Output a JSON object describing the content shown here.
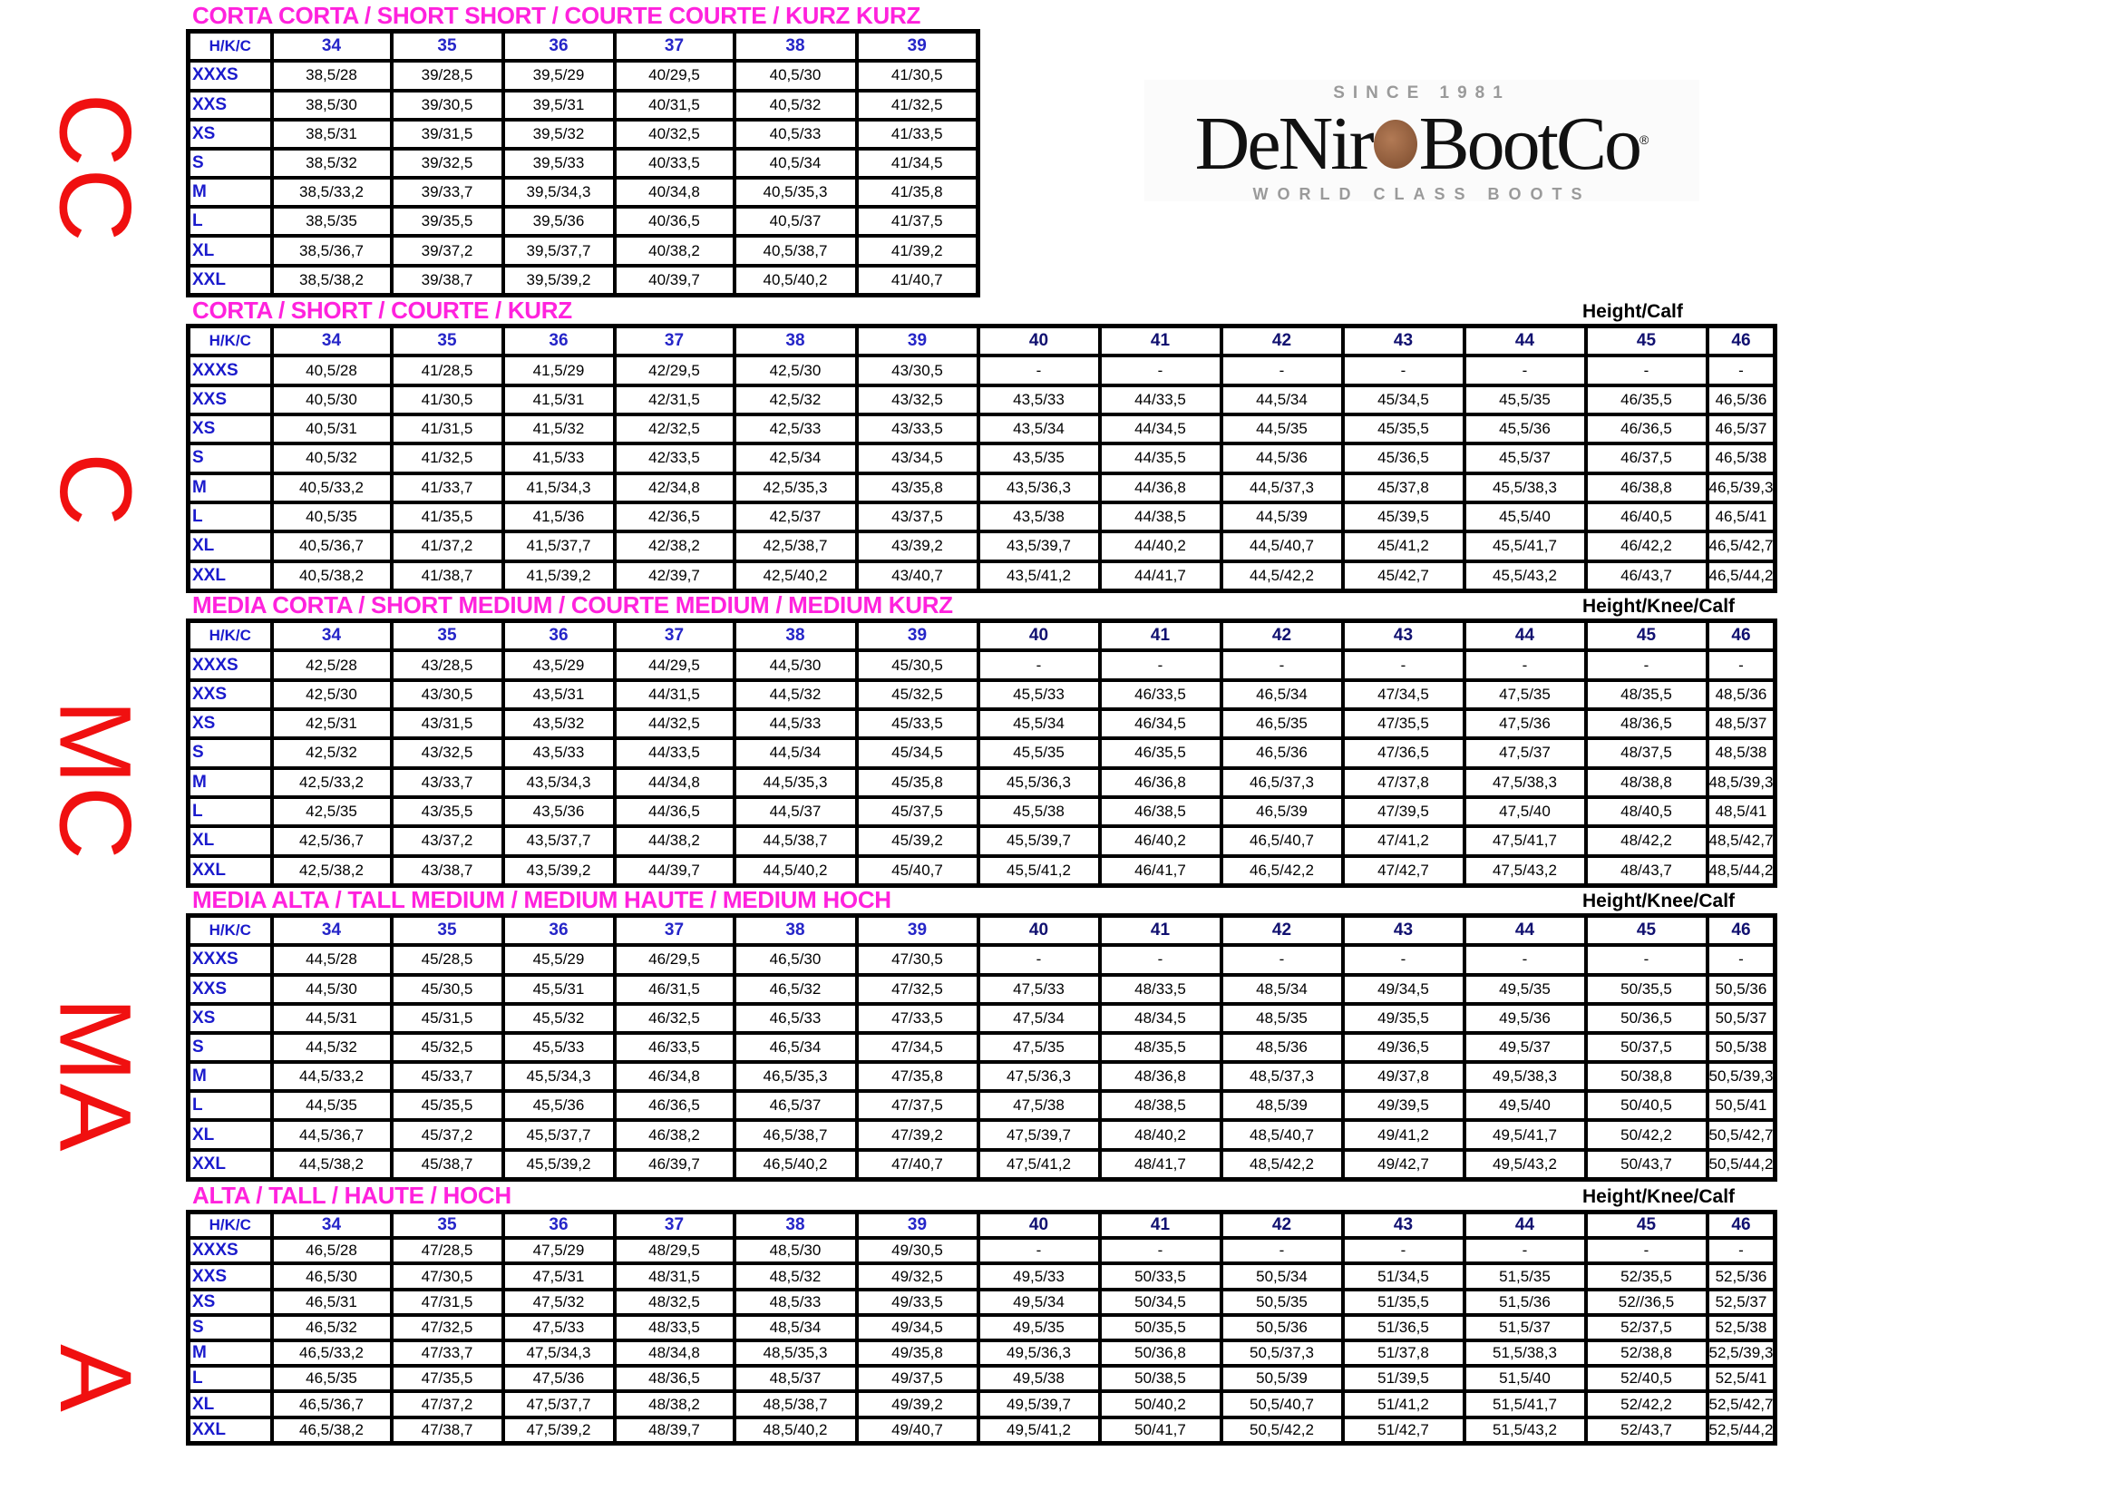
{
  "logo": {
    "since": "SINCE 1981",
    "name_left": "DeNir",
    "name_right": "BootCo",
    "registered": "®",
    "tagline": "WORLD CLASS BOOTS"
  },
  "colors": {
    "title": "#ff22dd",
    "side_label": "#f01010",
    "row_label": "#1a1acc"
  },
  "corner_label": "H/K/C",
  "sizes": [
    "XXXS",
    "XXS",
    "XS",
    "S",
    "M",
    "L",
    "XL",
    "XXL"
  ],
  "tables": [
    {
      "side": "CC",
      "title": "CORTA CORTA / SHORT SHORT / COURTE COURTE / KURZ KURZ",
      "note": "",
      "columns": [
        "34",
        "35",
        "36",
        "37",
        "38",
        "39"
      ],
      "rows": [
        [
          "38,5/28",
          "39/28,5",
          "39,5/29",
          "40/29,5",
          "40,5/30",
          "41/30,5"
        ],
        [
          "38,5/30",
          "39/30,5",
          "39,5/31",
          "40/31,5",
          "40,5/32",
          "41/32,5"
        ],
        [
          "38,5/31",
          "39/31,5",
          "39,5/32",
          "40/32,5",
          "40,5/33",
          "41/33,5"
        ],
        [
          "38,5/32",
          "39/32,5",
          "39,5/33",
          "40/33,5",
          "40,5/34",
          "41/34,5"
        ],
        [
          "38,5/33,2",
          "39/33,7",
          "39,5/34,3",
          "40/34,8",
          "40,5/35,3",
          "41/35,8"
        ],
        [
          "38,5/35",
          "39/35,5",
          "39,5/36",
          "40/36,5",
          "40,5/37",
          "41/37,5"
        ],
        [
          "38,5/36,7",
          "39/37,2",
          "39,5/37,7",
          "40/38,2",
          "40,5/38,7",
          "41/39,2"
        ],
        [
          "38,5/38,2",
          "39/38,7",
          "39,5/39,2",
          "40/39,7",
          "40,5/40,2",
          "41/40,7"
        ]
      ]
    },
    {
      "side": "C",
      "title": "CORTA / SHORT / COURTE / KURZ",
      "note": "Height/Calf",
      "columns": [
        "34",
        "35",
        "36",
        "37",
        "38",
        "39",
        "40",
        "41",
        "42",
        "43",
        "44",
        "45",
        "46"
      ],
      "rows": [
        [
          "40,5/28",
          "41/28,5",
          "41,5/29",
          "42/29,5",
          "42,5/30",
          "43/30,5",
          "-",
          "-",
          "-",
          "-",
          "-",
          "-",
          "-"
        ],
        [
          "40,5/30",
          "41/30,5",
          "41,5/31",
          "42/31,5",
          "42,5/32",
          "43/32,5",
          "43,5/33",
          "44/33,5",
          "44,5/34",
          "45/34,5",
          "45,5/35",
          "46/35,5",
          "46,5/36"
        ],
        [
          "40,5/31",
          "41/31,5",
          "41,5/32",
          "42/32,5",
          "42,5/33",
          "43/33,5",
          "43,5/34",
          "44/34,5",
          "44,5/35",
          "45/35,5",
          "45,5/36",
          "46/36,5",
          "46,5/37"
        ],
        [
          "40,5/32",
          "41/32,5",
          "41,5/33",
          "42/33,5",
          "42,5/34",
          "43/34,5",
          "43,5/35",
          "44/35,5",
          "44,5/36",
          "45/36,5",
          "45,5/37",
          "46/37,5",
          "46,5/38"
        ],
        [
          "40,5/33,2",
          "41/33,7",
          "41,5/34,3",
          "42/34,8",
          "42,5/35,3",
          "43/35,8",
          "43,5/36,3",
          "44/36,8",
          "44,5/37,3",
          "45/37,8",
          "45,5/38,3",
          "46/38,8",
          "46,5/39,3"
        ],
        [
          "40,5/35",
          "41/35,5",
          "41,5/36",
          "42/36,5",
          "42,5/37",
          "43/37,5",
          "43,5/38",
          "44/38,5",
          "44,5/39",
          "45/39,5",
          "45,5/40",
          "46/40,5",
          "46,5/41"
        ],
        [
          "40,5/36,7",
          "41/37,2",
          "41,5/37,7",
          "42/38,2",
          "42,5/38,7",
          "43/39,2",
          "43,5/39,7",
          "44/40,2",
          "44,5/40,7",
          "45/41,2",
          "45,5/41,7",
          "46/42,2",
          "46,5/42,7"
        ],
        [
          "40,5/38,2",
          "41/38,7",
          "41,5/39,2",
          "42/39,7",
          "42,5/40,2",
          "43/40,7",
          "43,5/41,2",
          "44/41,7",
          "44,5/42,2",
          "45/42,7",
          "45,5/43,2",
          "46/43,7",
          "46,5/44,2"
        ]
      ]
    },
    {
      "side": "MC",
      "title": "MEDIA CORTA / SHORT MEDIUM / COURTE MEDIUM / MEDIUM KURZ",
      "note": "Height/Knee/Calf",
      "columns": [
        "34",
        "35",
        "36",
        "37",
        "38",
        "39",
        "40",
        "41",
        "42",
        "43",
        "44",
        "45",
        "46"
      ],
      "rows": [
        [
          "42,5/28",
          "43/28,5",
          "43,5/29",
          "44/29,5",
          "44,5/30",
          "45/30,5",
          "-",
          "-",
          "-",
          "-",
          "-",
          "-",
          "-"
        ],
        [
          "42,5/30",
          "43/30,5",
          "43,5/31",
          "44/31,5",
          "44,5/32",
          "45/32,5",
          "45,5/33",
          "46/33,5",
          "46,5/34",
          "47/34,5",
          "47,5/35",
          "48/35,5",
          "48,5/36"
        ],
        [
          "42,5/31",
          "43/31,5",
          "43,5/32",
          "44/32,5",
          "44,5/33",
          "45/33,5",
          "45,5/34",
          "46/34,5",
          "46,5/35",
          "47/35,5",
          "47,5/36",
          "48/36,5",
          "48,5/37"
        ],
        [
          "42,5/32",
          "43/32,5",
          "43,5/33",
          "44/33,5",
          "44,5/34",
          "45/34,5",
          "45,5/35",
          "46/35,5",
          "46,5/36",
          "47/36,5",
          "47,5/37",
          "48/37,5",
          "48,5/38"
        ],
        [
          "42,5/33,2",
          "43/33,7",
          "43,5/34,3",
          "44/34,8",
          "44,5/35,3",
          "45/35,8",
          "45,5/36,3",
          "46/36,8",
          "46,5/37,3",
          "47/37,8",
          "47,5/38,3",
          "48/38,8",
          "48,5/39,3"
        ],
        [
          "42,5/35",
          "43/35,5",
          "43,5/36",
          "44/36,5",
          "44,5/37",
          "45/37,5",
          "45,5/38",
          "46/38,5",
          "46,5/39",
          "47/39,5",
          "47,5/40",
          "48/40,5",
          "48,5/41"
        ],
        [
          "42,5/36,7",
          "43/37,2",
          "43,5/37,7",
          "44/38,2",
          "44,5/38,7",
          "45/39,2",
          "45,5/39,7",
          "46/40,2",
          "46,5/40,7",
          "47/41,2",
          "47,5/41,7",
          "48/42,2",
          "48,5/42,7"
        ],
        [
          "42,5/38,2",
          "43/38,7",
          "43,5/39,2",
          "44/39,7",
          "44,5/40,2",
          "45/40,7",
          "45,5/41,2",
          "46/41,7",
          "46,5/42,2",
          "47/42,7",
          "47,5/43,2",
          "48/43,7",
          "48,5/44,2"
        ]
      ]
    },
    {
      "side": "MA",
      "title": "MEDIA ALTA / TALL MEDIUM / MEDIUM HAUTE / MEDIUM HOCH",
      "note": "Height/Knee/Calf",
      "columns": [
        "34",
        "35",
        "36",
        "37",
        "38",
        "39",
        "40",
        "41",
        "42",
        "43",
        "44",
        "45",
        "46"
      ],
      "rows": [
        [
          "44,5/28",
          "45/28,5",
          "45,5/29",
          "46/29,5",
          "46,5/30",
          "47/30,5",
          "-",
          "-",
          "-",
          "-",
          "-",
          "-",
          "-"
        ],
        [
          "44,5/30",
          "45/30,5",
          "45,5/31",
          "46/31,5",
          "46,5/32",
          "47/32,5",
          "47,5/33",
          "48/33,5",
          "48,5/34",
          "49/34,5",
          "49,5/35",
          "50/35,5",
          "50,5/36"
        ],
        [
          "44,5/31",
          "45/31,5",
          "45,5/32",
          "46/32,5",
          "46,5/33",
          "47/33,5",
          "47,5/34",
          "48/34,5",
          "48,5/35",
          "49/35,5",
          "49,5/36",
          "50/36,5",
          "50,5/37"
        ],
        [
          "44,5/32",
          "45/32,5",
          "45,5/33",
          "46/33,5",
          "46,5/34",
          "47/34,5",
          "47,5/35",
          "48/35,5",
          "48,5/36",
          "49/36,5",
          "49,5/37",
          "50/37,5",
          "50,5/38"
        ],
        [
          "44,5/33,2",
          "45/33,7",
          "45,5/34,3",
          "46/34,8",
          "46,5/35,3",
          "47/35,8",
          "47,5/36,3",
          "48/36,8",
          "48,5/37,3",
          "49/37,8",
          "49,5/38,3",
          "50/38,8",
          "50,5/39,3"
        ],
        [
          "44,5/35",
          "45/35,5",
          "45,5/36",
          "46/36,5",
          "46,5/37",
          "47/37,5",
          "47,5/38",
          "48/38,5",
          "48,5/39",
          "49/39,5",
          "49,5/40",
          "50/40,5",
          "50,5/41"
        ],
        [
          "44,5/36,7",
          "45/37,2",
          "45,5/37,7",
          "46/38,2",
          "46,5/38,7",
          "47/39,2",
          "47,5/39,7",
          "48/40,2",
          "48,5/40,7",
          "49/41,2",
          "49,5/41,7",
          "50/42,2",
          "50,5/42,7"
        ],
        [
          "44,5/38,2",
          "45/38,7",
          "45,5/39,2",
          "46/39,7",
          "46,5/40,2",
          "47/40,7",
          "47,5/41,2",
          "48/41,7",
          "48,5/42,2",
          "49/42,7",
          "49,5/43,2",
          "50/43,7",
          "50,5/44,2"
        ]
      ]
    },
    {
      "side": "A",
      "title": "ALTA / TALL / HAUTE / HOCH",
      "note": "Height/Knee/Calf",
      "columns": [
        "34",
        "35",
        "36",
        "37",
        "38",
        "39",
        "40",
        "41",
        "42",
        "43",
        "44",
        "45",
        "46"
      ],
      "rows": [
        [
          "46,5/28",
          "47/28,5",
          "47,5/29",
          "48/29,5",
          "48,5/30",
          "49/30,5",
          "-",
          "-",
          "-",
          "-",
          "-",
          "-",
          "-"
        ],
        [
          "46,5/30",
          "47/30,5",
          "47,5/31",
          "48/31,5",
          "48,5/32",
          "49/32,5",
          "49,5/33",
          "50/33,5",
          "50,5/34",
          "51/34,5",
          "51,5/35",
          "52/35,5",
          "52,5/36"
        ],
        [
          "46,5/31",
          "47/31,5",
          "47,5/32",
          "48/32,5",
          "48,5/33",
          "49/33,5",
          "49,5/34",
          "50/34,5",
          "50,5/35",
          "51/35,5",
          "51,5/36",
          "52//36,5",
          "52,5/37"
        ],
        [
          "46,5/32",
          "47/32,5",
          "47,5/33",
          "48/33,5",
          "48,5/34",
          "49/34,5",
          "49,5/35",
          "50/35,5",
          "50,5/36",
          "51/36,5",
          "51,5/37",
          "52/37,5",
          "52,5/38"
        ],
        [
          "46,5/33,2",
          "47/33,7",
          "47,5/34,3",
          "48/34,8",
          "48,5/35,3",
          "49/35,8",
          "49,5/36,3",
          "50/36,8",
          "50,5/37,3",
          "51/37,8",
          "51,5/38,3",
          "52/38,8",
          "52,5/39,3"
        ],
        [
          "46,5/35",
          "47/35,5",
          "47,5/36",
          "48/36,5",
          "48,5/37",
          "49/37,5",
          "49,5/38",
          "50/38,5",
          "50,5/39",
          "51/39,5",
          "51,5/40",
          "52/40,5",
          "52,5/41"
        ],
        [
          "46,5/36,7",
          "47/37,2",
          "47,5/37,7",
          "48/38,2",
          "48,5/38,7",
          "49/39,2",
          "49,5/39,7",
          "50/40,2",
          "50,5/40,7",
          "51/41,2",
          "51,5/41,7",
          "52/42,2",
          "52,5/42,7"
        ],
        [
          "46,5/38,2",
          "47/38,7",
          "47,5/39,2",
          "48/39,7",
          "48,5/40,2",
          "49/40,7",
          "49,5/41,2",
          "50/41,7",
          "50,5/42,2",
          "51/42,7",
          "51,5/43,2",
          "52/43,7",
          "52,5/44,2"
        ]
      ]
    }
  ]
}
